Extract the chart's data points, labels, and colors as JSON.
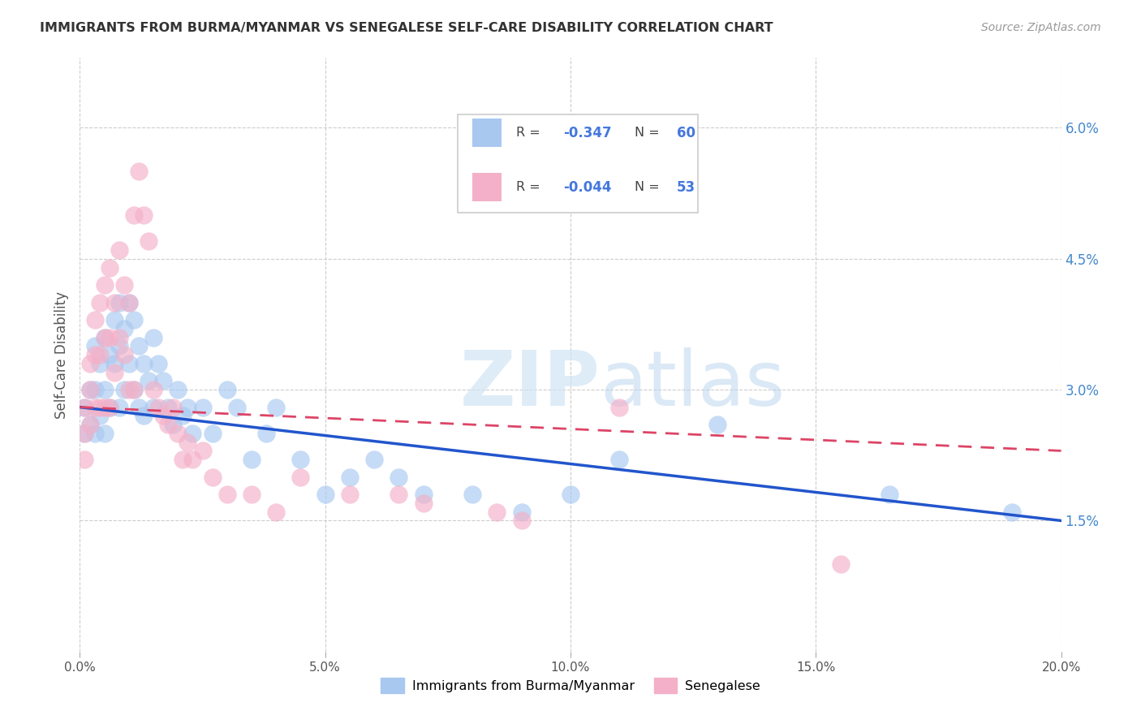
{
  "title": "IMMIGRANTS FROM BURMA/MYANMAR VS SENEGALESE SELF-CARE DISABILITY CORRELATION CHART",
  "source": "Source: ZipAtlas.com",
  "ylabel": "Self-Care Disability",
  "xlim": [
    0.0,
    0.2
  ],
  "ylim": [
    0.0,
    0.068
  ],
  "xtick_labels": [
    "0.0%",
    "5.0%",
    "10.0%",
    "15.0%",
    "20.0%"
  ],
  "xtick_vals": [
    0.0,
    0.05,
    0.1,
    0.15,
    0.2
  ],
  "ytick_labels": [
    "1.5%",
    "3.0%",
    "4.5%",
    "6.0%"
  ],
  "ytick_vals": [
    0.015,
    0.03,
    0.045,
    0.06
  ],
  "blue_R": "-0.347",
  "blue_N": "60",
  "pink_R": "-0.044",
  "pink_N": "53",
  "blue_color": "#a8c8f0",
  "pink_color": "#f4b0c8",
  "blue_line_color": "#2255cc",
  "pink_line_color": "#dd4466",
  "legend_label_blue": "Immigrants from Burma/Myanmar",
  "legend_label_pink": "Senegalese",
  "watermark": "ZIPatlas",
  "blue_x": [
    0.001,
    0.001,
    0.002,
    0.002,
    0.003,
    0.003,
    0.003,
    0.004,
    0.004,
    0.005,
    0.005,
    0.005,
    0.006,
    0.006,
    0.007,
    0.007,
    0.008,
    0.008,
    0.008,
    0.009,
    0.009,
    0.01,
    0.01,
    0.011,
    0.011,
    0.012,
    0.012,
    0.013,
    0.013,
    0.014,
    0.015,
    0.015,
    0.016,
    0.017,
    0.018,
    0.019,
    0.02,
    0.021,
    0.022,
    0.023,
    0.025,
    0.027,
    0.03,
    0.032,
    0.035,
    0.038,
    0.04,
    0.045,
    0.05,
    0.055,
    0.06,
    0.065,
    0.07,
    0.08,
    0.09,
    0.1,
    0.11,
    0.13,
    0.165,
    0.19
  ],
  "blue_y": [
    0.028,
    0.025,
    0.03,
    0.026,
    0.035,
    0.03,
    0.025,
    0.033,
    0.027,
    0.036,
    0.03,
    0.025,
    0.034,
    0.028,
    0.038,
    0.033,
    0.04,
    0.035,
    0.028,
    0.037,
    0.03,
    0.04,
    0.033,
    0.038,
    0.03,
    0.035,
    0.028,
    0.033,
    0.027,
    0.031,
    0.036,
    0.028,
    0.033,
    0.031,
    0.028,
    0.026,
    0.03,
    0.027,
    0.028,
    0.025,
    0.028,
    0.025,
    0.03,
    0.028,
    0.022,
    0.025,
    0.028,
    0.022,
    0.018,
    0.02,
    0.022,
    0.02,
    0.018,
    0.018,
    0.016,
    0.018,
    0.022,
    0.026,
    0.018,
    0.016
  ],
  "pink_x": [
    0.001,
    0.001,
    0.001,
    0.002,
    0.002,
    0.002,
    0.003,
    0.003,
    0.003,
    0.004,
    0.004,
    0.004,
    0.005,
    0.005,
    0.005,
    0.006,
    0.006,
    0.006,
    0.007,
    0.007,
    0.008,
    0.008,
    0.009,
    0.009,
    0.01,
    0.01,
    0.011,
    0.011,
    0.012,
    0.013,
    0.014,
    0.015,
    0.016,
    0.017,
    0.018,
    0.019,
    0.02,
    0.021,
    0.022,
    0.023,
    0.025,
    0.027,
    0.03,
    0.035,
    0.04,
    0.045,
    0.055,
    0.065,
    0.07,
    0.085,
    0.09,
    0.11,
    0.155
  ],
  "pink_y": [
    0.028,
    0.025,
    0.022,
    0.033,
    0.03,
    0.026,
    0.038,
    0.034,
    0.028,
    0.04,
    0.034,
    0.028,
    0.042,
    0.036,
    0.028,
    0.044,
    0.036,
    0.028,
    0.04,
    0.032,
    0.046,
    0.036,
    0.042,
    0.034,
    0.04,
    0.03,
    0.05,
    0.03,
    0.055,
    0.05,
    0.047,
    0.03,
    0.028,
    0.027,
    0.026,
    0.028,
    0.025,
    0.022,
    0.024,
    0.022,
    0.023,
    0.02,
    0.018,
    0.018,
    0.016,
    0.02,
    0.018,
    0.018,
    0.017,
    0.016,
    0.015,
    0.028,
    0.01
  ]
}
